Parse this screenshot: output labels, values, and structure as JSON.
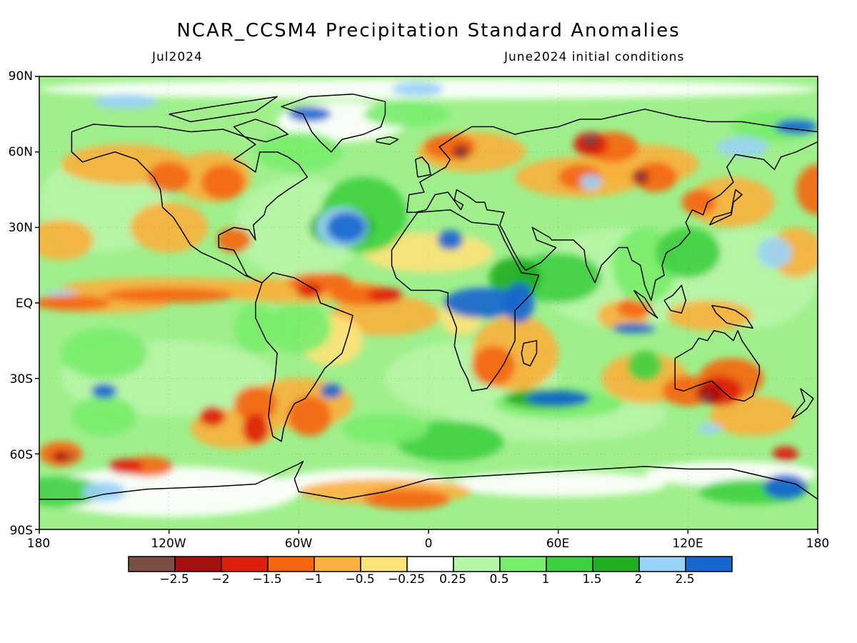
{
  "header": {
    "title": "NCAR_CCSM4 Precipitation Standard Anomalies",
    "valid_month": "Jul2024",
    "initial_conditions": "June2024 initial conditions"
  },
  "lat_axis": {
    "labels": [
      "90N",
      "60N",
      "30N",
      "EQ",
      "30S",
      "60S",
      "90S"
    ]
  },
  "lon_axis": {
    "labels": [
      "180",
      "120W",
      "60W",
      "0",
      "60E",
      "120E",
      "180"
    ]
  },
  "colorbar": {
    "colors": [
      "#7b4f46",
      "#a50f0f",
      "#de1f0c",
      "#f4670f",
      "#f9b13c",
      "#fde37a",
      "#ffffff",
      "#b7f5a8",
      "#79ed6d",
      "#3fd042",
      "#22ae22",
      "#99d2f7",
      "#1766d0"
    ],
    "labels": [
      "−2.5",
      "−2",
      "−1.5",
      "−1",
      "−0.5",
      "−0.25",
      "0.25",
      "0.5",
      "1",
      "1.5",
      "2",
      "2.5"
    ]
  },
  "colors": {
    "map_background": "#9ff08c",
    "coastline": "#000000"
  }
}
